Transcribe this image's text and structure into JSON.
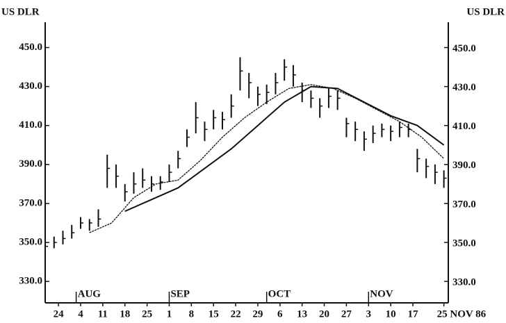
{
  "chart_data": {
    "type": "ohlc",
    "y_label_left": "US DLR",
    "y_label_right": "US DLR",
    "color": "#111111",
    "xlim": [
      0,
      91
    ],
    "ylim": [
      319,
      463
    ],
    "yticks": [
      {
        "value": 330,
        "label": "330.0"
      },
      {
        "value": 350,
        "label": "350.0"
      },
      {
        "value": 370,
        "label": "370.0"
      },
      {
        "value": 390,
        "label": "390.0"
      },
      {
        "value": 410,
        "label": "410.0"
      },
      {
        "value": 430,
        "label": "430.0"
      },
      {
        "value": 450,
        "label": "450.0"
      }
    ],
    "xticks": [
      {
        "value": 3,
        "label": "24"
      },
      {
        "value": 8,
        "label": "4"
      },
      {
        "value": 13,
        "label": "11"
      },
      {
        "value": 18,
        "label": "18"
      },
      {
        "value": 23,
        "label": "25"
      },
      {
        "value": 28,
        "label": "1"
      },
      {
        "value": 33,
        "label": "8"
      },
      {
        "value": 38,
        "label": "15"
      },
      {
        "value": 43,
        "label": "22"
      },
      {
        "value": 48,
        "label": "29"
      },
      {
        "value": 53,
        "label": "6"
      },
      {
        "value": 58,
        "label": "13"
      },
      {
        "value": 63,
        "label": "20"
      },
      {
        "value": 68,
        "label": "27"
      },
      {
        "value": 73,
        "label": "3"
      },
      {
        "value": 78,
        "label": "10"
      },
      {
        "value": 83,
        "label": "17"
      },
      {
        "value": 90,
        "label": "25 NOV 86"
      }
    ],
    "month_markers": [
      {
        "label": "AUG",
        "x": 7
      },
      {
        "label": "SEP",
        "x": 28
      },
      {
        "label": "OCT",
        "x": 50
      },
      {
        "label": "NOV",
        "x": 73
      }
    ],
    "bars": {
      "x": [
        0,
        2,
        4,
        6,
        8,
        10,
        12,
        14,
        16,
        18,
        20,
        22,
        24,
        26,
        28,
        30,
        32,
        34,
        36,
        38,
        40,
        42,
        44,
        46,
        48,
        50,
        52,
        54,
        56,
        58,
        60,
        62,
        64,
        66,
        68,
        70,
        72,
        74,
        76,
        78,
        80,
        82,
        84,
        86,
        88,
        90
      ],
      "high": [
        351,
        353,
        356,
        359,
        363,
        362,
        367,
        395,
        390,
        380,
        386,
        388,
        384,
        384,
        390,
        397,
        408,
        422,
        412,
        418,
        417,
        426,
        445,
        437,
        430,
        431,
        437,
        444,
        441,
        432,
        428,
        424,
        429,
        428,
        414,
        412,
        407,
        410,
        411,
        410,
        412,
        411,
        398,
        393,
        390,
        387
      ],
      "low": [
        346,
        347,
        349,
        352,
        357,
        356,
        358,
        378,
        378,
        371,
        375,
        378,
        376,
        377,
        381,
        388,
        399,
        406,
        402,
        408,
        408,
        414,
        428,
        424,
        420,
        421,
        426,
        433,
        430,
        422,
        419,
        414,
        419,
        418,
        404,
        402,
        397,
        401,
        404,
        402,
        404,
        404,
        386,
        383,
        380,
        378
      ],
      "close": [
        348,
        350,
        352,
        355,
        360,
        360,
        362,
        388,
        384,
        376,
        380,
        382,
        380,
        381,
        386,
        393,
        404,
        414,
        408,
        414,
        413,
        420,
        438,
        432,
        426,
        427,
        432,
        440,
        436,
        428,
        424,
        420,
        425,
        424,
        411,
        408,
        403,
        406,
        408,
        407,
        409,
        408,
        393,
        389,
        386,
        383
      ]
    },
    "series": [
      {
        "x": [
          10,
          15,
          20,
          25,
          30,
          35,
          40,
          45,
          50,
          55,
          60,
          65,
          70,
          75,
          80,
          85,
          90
        ],
        "values": [
          355,
          360,
          373,
          380,
          382,
          392,
          404,
          414,
          422,
          429,
          431,
          429,
          424,
          418,
          412,
          404,
          393
        ],
        "color": "#111111"
      },
      {
        "x": [
          18,
          24,
          30,
          36,
          42,
          48,
          54,
          60,
          66,
          72,
          78,
          84,
          90
        ],
        "values": [
          366,
          372,
          378,
          388,
          398,
          410,
          422,
          430,
          429,
          422,
          415,
          410,
          400
        ],
        "color": "#111111"
      }
    ]
  }
}
